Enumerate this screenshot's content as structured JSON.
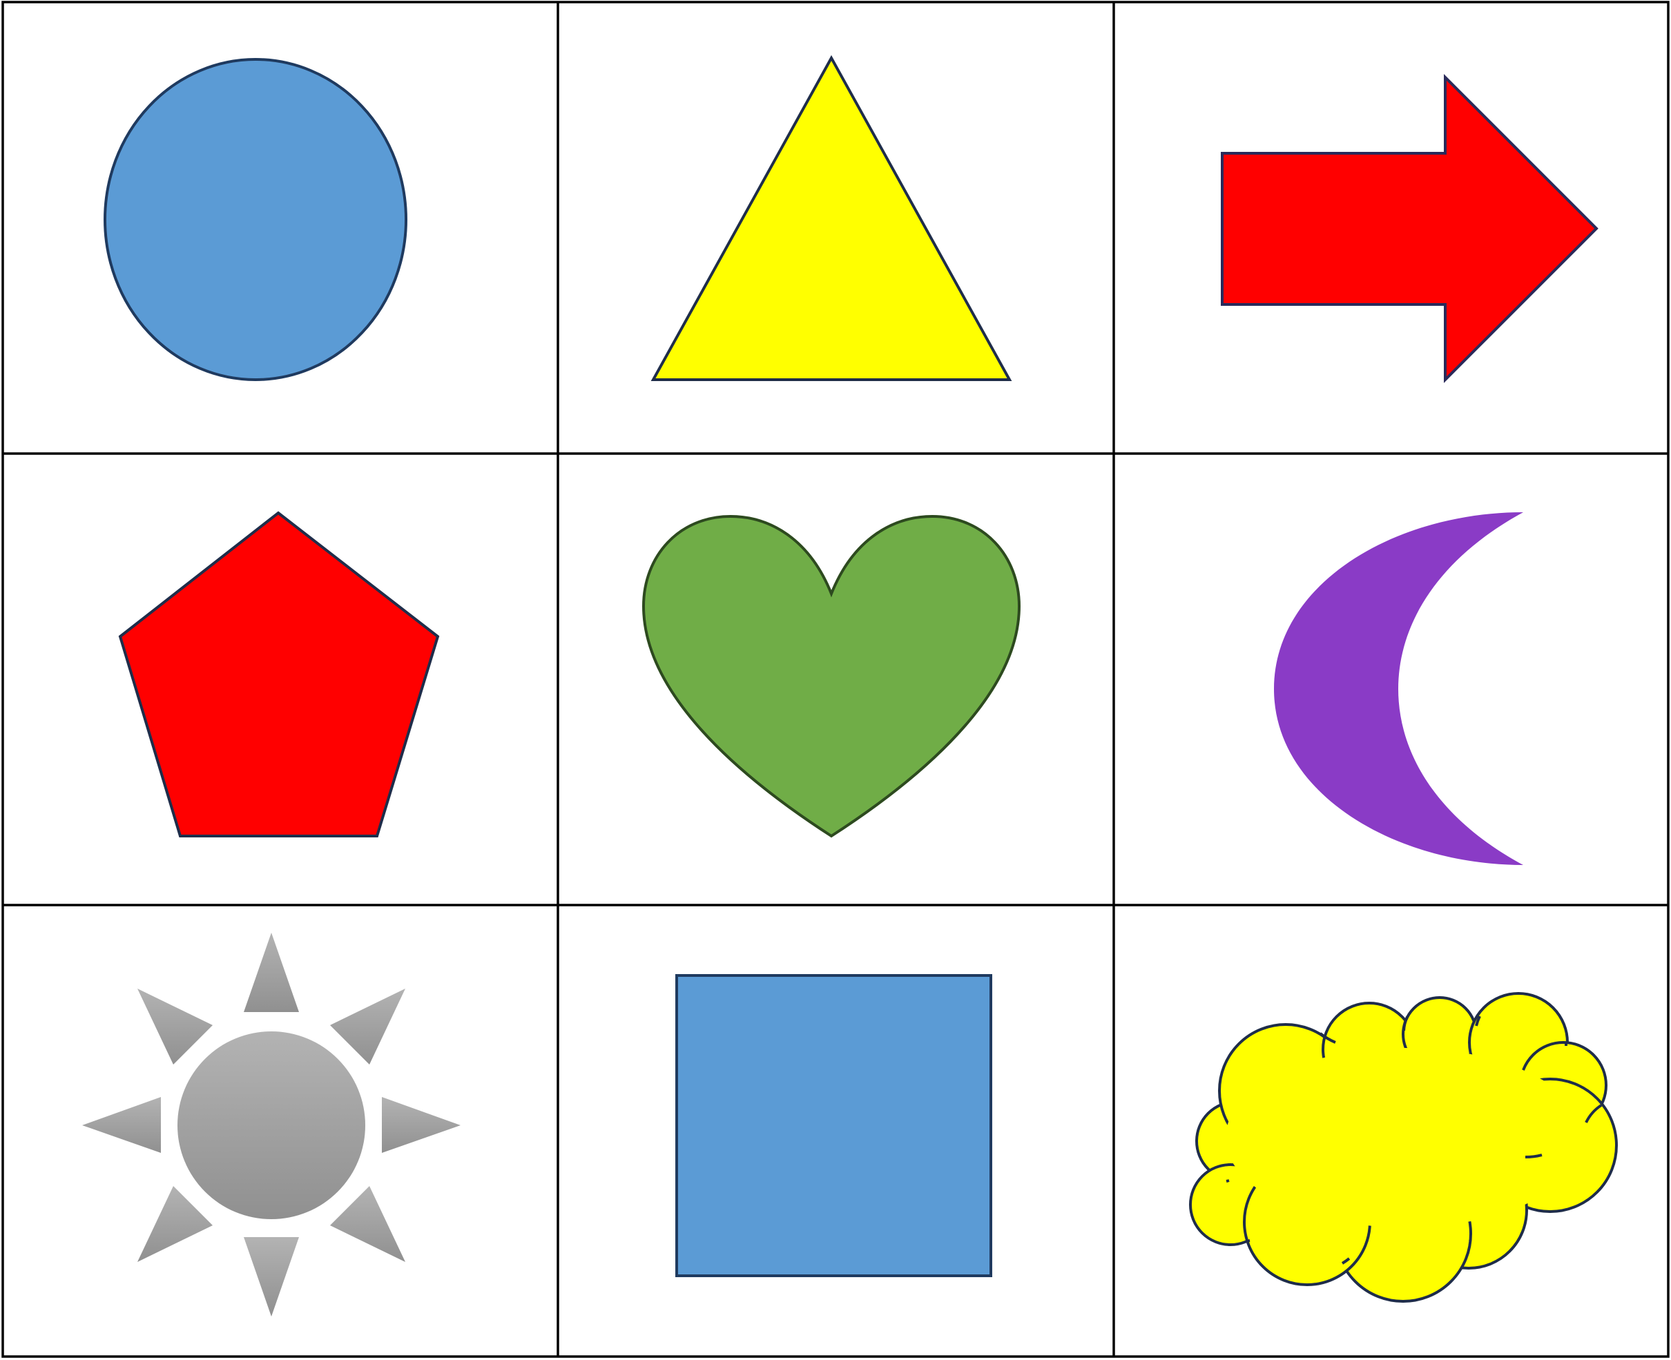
{
  "grid": {
    "rows": 3,
    "cols": 3,
    "line_color": "#000000"
  },
  "shapes": [
    {
      "name": "circle",
      "fill": "#5b9bd5",
      "stroke": "#1f3a5f"
    },
    {
      "name": "triangle",
      "fill": "#ffff00",
      "stroke": "#1f2d4a"
    },
    {
      "name": "arrow",
      "fill": "#ff0000",
      "stroke": "#2a2a5a"
    },
    {
      "name": "pentagon",
      "fill": "#ff0000",
      "stroke": "#1f2d4a"
    },
    {
      "name": "heart",
      "fill": "#70ad47",
      "stroke": "#2d4a1f"
    },
    {
      "name": "moon",
      "fill": "#8a3bc6",
      "stroke": "none"
    },
    {
      "name": "sun",
      "fill": "#a6a6a6",
      "stroke": "none"
    },
    {
      "name": "square",
      "fill": "#5b9bd5",
      "stroke": "#1f3a5f"
    },
    {
      "name": "cloud",
      "fill": "#ffff00",
      "stroke": "#1f2d4a"
    }
  ]
}
